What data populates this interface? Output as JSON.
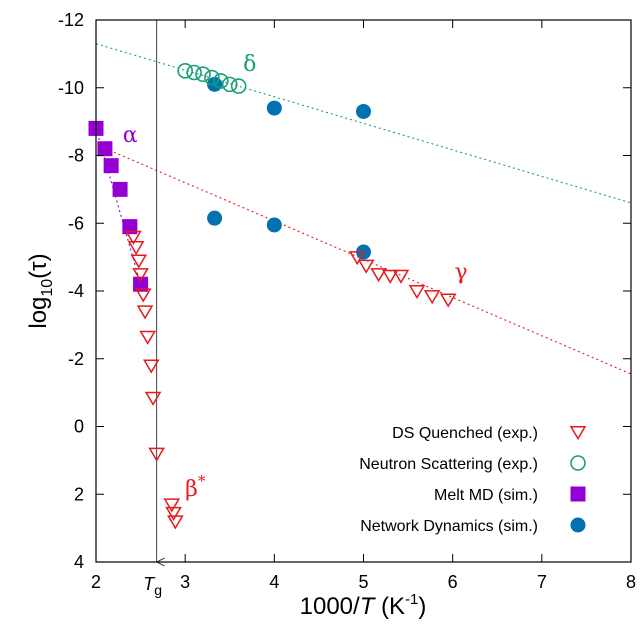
{
  "chart_data": {
    "type": "scatter",
    "xlabel": {
      "main": "1000/",
      "var": "T",
      "unit_open": " (K",
      "unit_exp": "-1",
      "unit_close": ")"
    },
    "ylabel": {
      "main": "log",
      "sub": "10",
      "rest": "(τ)"
    },
    "xlim": [
      2,
      8
    ],
    "ylim": [
      4,
      -12
    ],
    "x_ticks": [
      {
        "value": 2,
        "label": "2"
      },
      {
        "value": 3,
        "label": "3"
      },
      {
        "value": 4,
        "label": "4"
      },
      {
        "value": 5,
        "label": "5"
      },
      {
        "value": 6,
        "label": "6"
      },
      {
        "value": 7,
        "label": "7"
      },
      {
        "value": 8,
        "label": "8"
      }
    ],
    "y_ticks": [
      {
        "value": -12,
        "label": "-12"
      },
      {
        "value": -10,
        "label": "-10"
      },
      {
        "value": -8,
        "label": "-8"
      },
      {
        "value": -6,
        "label": "-6"
      },
      {
        "value": -4,
        "label": "-4"
      },
      {
        "value": -2,
        "label": "-2"
      },
      {
        "value": 0,
        "label": "0"
      },
      {
        "value": 2,
        "label": "2"
      },
      {
        "value": 4,
        "label": "4"
      }
    ],
    "grid": false,
    "legend_position": "bottom-right",
    "tg_marker": {
      "x": 2.68,
      "label_main": "T",
      "label_sub": "g"
    },
    "series": [
      {
        "name": "DS Quenched (exp.)",
        "marker": "triangle-down-open",
        "color": "#e41a1c",
        "x": [
          2.42,
          2.45,
          2.48,
          2.5,
          2.53,
          2.55,
          2.58,
          2.62,
          2.64,
          2.68,
          4.93,
          5.03,
          5.17,
          5.3,
          5.42,
          5.6,
          5.77,
          5.95,
          2.85,
          2.87,
          2.89
        ],
        "y": [
          -5.6,
          -5.3,
          -4.9,
          -4.5,
          -3.9,
          -3.4,
          -2.65,
          -1.8,
          -0.85,
          0.8,
          -5.0,
          -4.75,
          -4.5,
          -4.45,
          -4.45,
          -4.0,
          -3.85,
          -3.75,
          2.3,
          2.55,
          2.8
        ]
      },
      {
        "name": "Neutron Scattering (exp.)",
        "marker": "circle-open",
        "color": "#1a9e77",
        "x": [
          3.0,
          3.1,
          3.2,
          3.3,
          3.4,
          3.5,
          3.6
        ],
        "y": [
          -10.5,
          -10.45,
          -10.4,
          -10.3,
          -10.2,
          -10.1,
          -10.05
        ]
      },
      {
        "name": "Melt MD (sim.)",
        "marker": "square-filled",
        "color": "#9400d3",
        "x": [
          2.0,
          2.1,
          2.17,
          2.27,
          2.38,
          2.5
        ],
        "y": [
          -8.8,
          -8.2,
          -7.7,
          -7.0,
          -5.9,
          -4.2
        ]
      },
      {
        "name": "Network Dynamics (sim.)",
        "marker": "circle-filled",
        "color": "#0072b2",
        "x": [
          3.33,
          4.0,
          5.0,
          3.33,
          4.0,
          5.0
        ],
        "y": [
          -10.1,
          -9.4,
          -9.3,
          -6.15,
          -5.95,
          -5.15
        ]
      }
    ],
    "fit_lines": [
      {
        "color": "#1a9e77",
        "x": [
          2.0,
          8.0
        ],
        "y": [
          -11.3,
          -6.6
        ]
      },
      {
        "color": "#e41a1c",
        "x": [
          2.2,
          8.0
        ],
        "y": [
          -8.1,
          -1.55
        ]
      },
      {
        "color": "#9400d3",
        "x": [
          2.0,
          2.5
        ],
        "y": [
          -8.8,
          -4.2
        ]
      }
    ],
    "annotations": [
      {
        "text": "δ",
        "sup": "",
        "color": "#1a9e77",
        "x": 3.65,
        "y": -10.5
      },
      {
        "text": "α",
        "sup": "",
        "color": "#9400d3",
        "x": 2.3,
        "y": -8.4
      },
      {
        "text": "γ",
        "sup": "",
        "color": "#e41a1c",
        "x": 6.02,
        "y": -4.35
      },
      {
        "text": "β",
        "sup": "*",
        "color": "#e41a1c",
        "x": 3.0,
        "y": 2.05
      }
    ]
  }
}
